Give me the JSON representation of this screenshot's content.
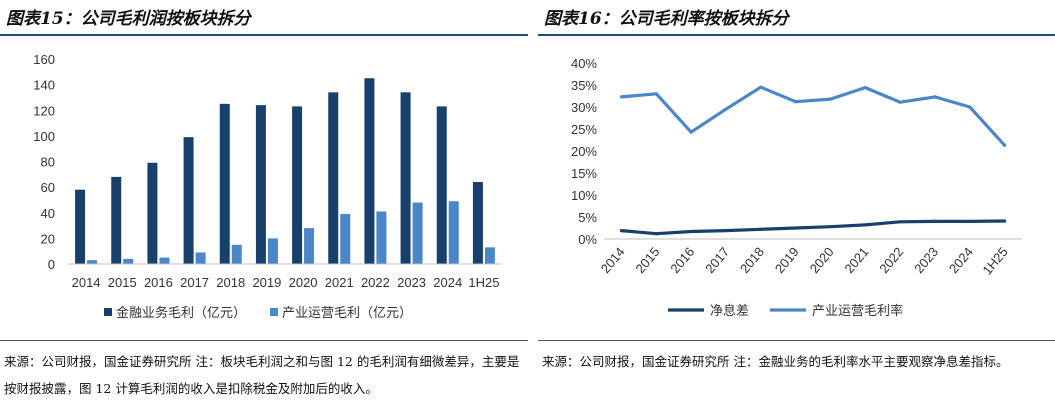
{
  "left": {
    "title": "图表15：公司毛利润按板块拆分",
    "source": "来源：公司财报，国金证券研究所  注：板块毛利润之和与图 12 的毛利润有细微差异，主要是按财报披露，图 12 计算毛利润的收入是扣除税金及附加后的收入。",
    "chart_data": {
      "type": "bar",
      "categories": [
        "2014",
        "2015",
        "2016",
        "2017",
        "2018",
        "2019",
        "2020",
        "2021",
        "2022",
        "2023",
        "2024",
        "1H25"
      ],
      "series": [
        {
          "name": "金融业务毛利（亿元）",
          "color": "#17406d",
          "values": [
            58,
            68,
            79,
            99,
            125,
            124,
            123,
            134,
            145,
            134,
            123,
            64
          ]
        },
        {
          "name": "产业运营毛利（亿元）",
          "color": "#4a86c8",
          "values": [
            3,
            4,
            5,
            9,
            15,
            20,
            28,
            39,
            41,
            48,
            49,
            13
          ]
        }
      ],
      "ylim": [
        0,
        160
      ],
      "yticks": [
        0,
        20,
        40,
        60,
        80,
        100,
        120,
        140,
        160
      ],
      "ytick_labels": [
        "0",
        "20",
        "40",
        "60",
        "80",
        "100",
        "120",
        "140",
        "160"
      ],
      "legend": "bottom"
    }
  },
  "right": {
    "title": "图表16：公司毛利率按板块拆分",
    "source": "来源：公司财报，国金证券研究所  注：金融业务的毛利率水平主要观察净息差指标。",
    "chart_data": {
      "type": "line",
      "categories": [
        "2014",
        "2015",
        "2016",
        "2017",
        "2018",
        "2019",
        "2020",
        "2021",
        "2022",
        "2023",
        "2024",
        "1H25"
      ],
      "series": [
        {
          "name": "净息差",
          "color": "#17406d",
          "values": [
            1.9,
            1.2,
            1.7,
            1.9,
            2.2,
            2.5,
            2.8,
            3.2,
            3.9,
            4.0,
            4.0,
            4.1
          ]
        },
        {
          "name": "产业运营毛利率",
          "color": "#4a86c8",
          "values": [
            32.3,
            33.0,
            24.3,
            29.5,
            34.5,
            31.2,
            31.8,
            34.4,
            31.1,
            32.3,
            30.0,
            21.3
          ]
        }
      ],
      "ylim": [
        0,
        40
      ],
      "yticks": [
        0,
        5,
        10,
        15,
        20,
        25,
        30,
        35,
        40
      ],
      "ytick_labels": [
        "0%",
        "5%",
        "10%",
        "15%",
        "20%",
        "25%",
        "30%",
        "35%",
        "40%"
      ],
      "legend": "bottom"
    }
  }
}
